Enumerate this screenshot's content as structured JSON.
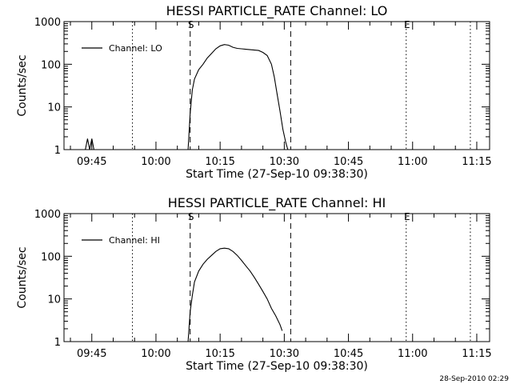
{
  "footer": {
    "timestamp": "28-Sep-2010 02:29"
  },
  "chart_data": [
    {
      "type": "line",
      "title": "HESSI PARTICLE_RATE Channel: LO",
      "xlabel": "Start Time (27-Sep-10 09:38:30)",
      "ylabel": "Counts/sec",
      "yscale": "log",
      "ylim": [
        1,
        1000
      ],
      "xlim": [
        "09:38:30",
        "11:18:00"
      ],
      "yticks": [
        "1",
        "10",
        "100",
        "1000"
      ],
      "xticks": [
        "09:45",
        "10:00",
        "10:15",
        "10:30",
        "10:45",
        "11:00",
        "11:15"
      ],
      "legend": {
        "placement": "top-left",
        "entries": [
          "Channel: LO"
        ]
      },
      "markers": [
        {
          "label": "S",
          "time": "10:08:00",
          "style": "dashed"
        },
        {
          "label": "",
          "time": "10:31:30",
          "style": "dashed"
        },
        {
          "label": "E",
          "time": "10:58:30",
          "style": "dotted"
        },
        {
          "label": "",
          "time": "09:54:30",
          "style": "dotted"
        },
        {
          "label": "",
          "time": "11:13:30",
          "style": "dotted"
        }
      ],
      "series": [
        {
          "name": "Channel: LO",
          "x": [
            "09:43:30",
            "09:44:00",
            "09:44:30",
            "09:45:00",
            "09:45:30",
            "10:07:30",
            "10:08:00",
            "10:08:30",
            "10:09:00",
            "10:10:00",
            "10:11:00",
            "10:12:00",
            "10:13:00",
            "10:14:00",
            "10:15:00",
            "10:16:00",
            "10:17:00",
            "10:18:00",
            "10:19:00",
            "10:20:00",
            "10:21:00",
            "10:22:00",
            "10:23:00",
            "10:24:00",
            "10:25:00",
            "10:26:00",
            "10:27:00",
            "10:27:40",
            "10:28:20",
            "10:29:00",
            "10:29:40",
            "10:30:20",
            "10:30:50"
          ],
          "values": [
            1,
            1.8,
            1,
            1.8,
            1,
            1,
            7,
            25,
            45,
            75,
            100,
            140,
            180,
            230,
            270,
            290,
            280,
            250,
            235,
            230,
            225,
            220,
            215,
            210,
            190,
            160,
            100,
            50,
            20,
            8,
            3,
            1.5,
            1
          ]
        }
      ]
    },
    {
      "type": "line",
      "title": "HESSI PARTICLE_RATE Channel: HI",
      "xlabel": "Start Time (27-Sep-10 09:38:30)",
      "ylabel": "Counts/sec",
      "yscale": "log",
      "ylim": [
        1,
        1000
      ],
      "xlim": [
        "09:38:30",
        "11:18:00"
      ],
      "yticks": [
        "1",
        "10",
        "100",
        "1000"
      ],
      "xticks": [
        "09:45",
        "10:00",
        "10:15",
        "10:30",
        "10:45",
        "11:00",
        "11:15"
      ],
      "legend": {
        "placement": "top-left",
        "entries": [
          "Channel: HI"
        ]
      },
      "markers": [
        {
          "label": "S",
          "time": "10:08:00",
          "style": "dashed"
        },
        {
          "label": "",
          "time": "10:31:30",
          "style": "dashed"
        },
        {
          "label": "E",
          "time": "10:58:30",
          "style": "dotted"
        },
        {
          "label": "",
          "time": "09:54:30",
          "style": "dotted"
        },
        {
          "label": "",
          "time": "11:13:30",
          "style": "dotted"
        }
      ],
      "series": [
        {
          "name": "Channel: HI",
          "x": [
            "10:07:30",
            "10:08:00",
            "10:08:30",
            "10:09:00",
            "10:10:00",
            "10:11:00",
            "10:12:00",
            "10:13:00",
            "10:14:00",
            "10:15:00",
            "10:16:00",
            "10:17:00",
            "10:18:00",
            "10:19:00",
            "10:20:00",
            "10:21:00",
            "10:22:00",
            "10:23:00",
            "10:24:00",
            "10:25:00",
            "10:26:00",
            "10:27:00",
            "10:28:00",
            "10:29:00",
            "10:29:30"
          ],
          "values": [
            1,
            5,
            12,
            25,
            45,
            65,
            85,
            105,
            130,
            150,
            155,
            150,
            130,
            105,
            80,
            60,
            45,
            32,
            22,
            15,
            10,
            6,
            4,
            2.5,
            1.8
          ]
        }
      ]
    }
  ]
}
